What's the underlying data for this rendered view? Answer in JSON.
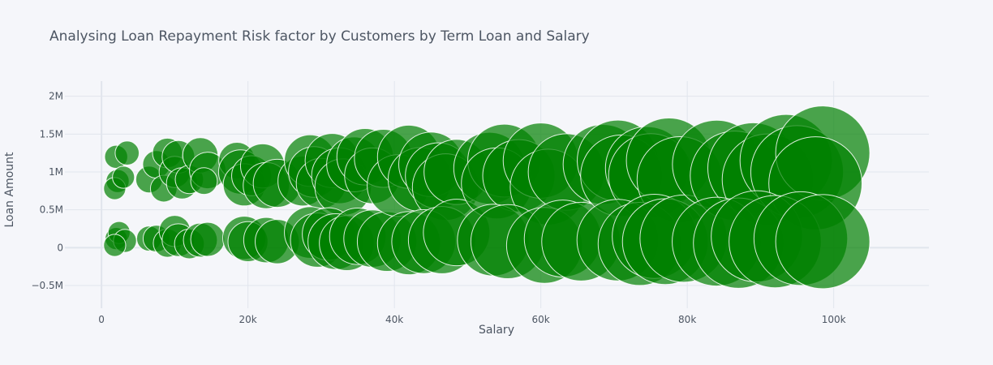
{
  "chart_data": {
    "type": "scatter",
    "title": "Analysing Loan Repayment Risk factor by Customers by Term Loan and Salary",
    "xlabel": "Salary",
    "ylabel": "Loan Amount",
    "xlim": [
      -5000,
      113000
    ],
    "ylim": [
      -800000,
      2200000
    ],
    "x_ticks": [
      0,
      20000,
      40000,
      60000,
      80000,
      100000
    ],
    "x_tick_labels": [
      "0",
      "20k",
      "40k",
      "60k",
      "80k",
      "100k"
    ],
    "y_ticks": [
      -500000,
      0,
      500000,
      1000000,
      1500000,
      2000000
    ],
    "y_tick_labels": [
      "−0.5M",
      "0",
      "0.5M",
      "1M",
      "1.5M",
      "2M"
    ],
    "marker_color": "#008000",
    "marker_opacity": 0.7,
    "grid": true,
    "legend": "none",
    "series": [
      {
        "points": [
          {
            "x": 2000,
            "y": 1200000,
            "s": 600
          },
          {
            "x": 3500,
            "y": 1250000,
            "s": 650
          },
          {
            "x": 2200,
            "y": 880000,
            "s": 600
          },
          {
            "x": 1800,
            "y": 780000,
            "s": 550
          },
          {
            "x": 3000,
            "y": 930000,
            "s": 550
          },
          {
            "x": 2000,
            "y": 120000,
            "s": 550
          },
          {
            "x": 2400,
            "y": 200000,
            "s": 550
          },
          {
            "x": 3200,
            "y": 90000,
            "s": 600
          },
          {
            "x": 1800,
            "y": 30000,
            "s": 550
          },
          {
            "x": 6500,
            "y": 900000,
            "s": 800
          },
          {
            "x": 7500,
            "y": 1100000,
            "s": 850
          },
          {
            "x": 8500,
            "y": 780000,
            "s": 800
          },
          {
            "x": 9000,
            "y": 1250000,
            "s": 1000
          },
          {
            "x": 10000,
            "y": 1000000,
            "s": 1100
          },
          {
            "x": 10500,
            "y": 1200000,
            "s": 1200
          },
          {
            "x": 11000,
            "y": 850000,
            "s": 1100
          },
          {
            "x": 12000,
            "y": 900000,
            "s": 900
          },
          {
            "x": 13500,
            "y": 1220000,
            "s": 1400
          },
          {
            "x": 14500,
            "y": 1020000,
            "s": 1500
          },
          {
            "x": 14000,
            "y": 880000,
            "s": 800
          },
          {
            "x": 6500,
            "y": 120000,
            "s": 700
          },
          {
            "x": 7500,
            "y": 120000,
            "s": 800
          },
          {
            "x": 9000,
            "y": 60000,
            "s": 900
          },
          {
            "x": 10000,
            "y": 220000,
            "s": 1100
          },
          {
            "x": 10500,
            "y": 100000,
            "s": 1200
          },
          {
            "x": 12000,
            "y": 50000,
            "s": 1000
          },
          {
            "x": 13500,
            "y": 100000,
            "s": 1300
          },
          {
            "x": 14500,
            "y": 110000,
            "s": 1300
          },
          {
            "x": 18500,
            "y": 1150000,
            "s": 1500
          },
          {
            "x": 19000,
            "y": 1000000,
            "s": 2200
          },
          {
            "x": 19500,
            "y": 830000,
            "s": 2000
          },
          {
            "x": 20500,
            "y": 950000,
            "s": 1800
          },
          {
            "x": 22000,
            "y": 1080000,
            "s": 2200
          },
          {
            "x": 22500,
            "y": 820000,
            "s": 2400
          },
          {
            "x": 24000,
            "y": 850000,
            "s": 2600
          },
          {
            "x": 19500,
            "y": 130000,
            "s": 2100
          },
          {
            "x": 20000,
            "y": 80000,
            "s": 1800
          },
          {
            "x": 22500,
            "y": 100000,
            "s": 2300
          },
          {
            "x": 24000,
            "y": 80000,
            "s": 2200
          },
          {
            "x": 27500,
            "y": 880000,
            "s": 2800
          },
          {
            "x": 28500,
            "y": 1150000,
            "s": 3000
          },
          {
            "x": 29000,
            "y": 1000000,
            "s": 2900
          },
          {
            "x": 30000,
            "y": 850000,
            "s": 2800
          },
          {
            "x": 31500,
            "y": 1150000,
            "s": 3300
          },
          {
            "x": 32500,
            "y": 950000,
            "s": 3500
          },
          {
            "x": 33000,
            "y": 800000,
            "s": 3600
          },
          {
            "x": 34500,
            "y": 1100000,
            "s": 3400
          },
          {
            "x": 36000,
            "y": 1200000,
            "s": 3600
          },
          {
            "x": 37000,
            "y": 950000,
            "s": 3500
          },
          {
            "x": 38500,
            "y": 1180000,
            "s": 3800
          },
          {
            "x": 28500,
            "y": 200000,
            "s": 3000
          },
          {
            "x": 29500,
            "y": 100000,
            "s": 3300
          },
          {
            "x": 31000,
            "y": 180000,
            "s": 3100
          },
          {
            "x": 32000,
            "y": 80000,
            "s": 3500
          },
          {
            "x": 33500,
            "y": 60000,
            "s": 3400
          },
          {
            "x": 35000,
            "y": 150000,
            "s": 3600
          },
          {
            "x": 37000,
            "y": 120000,
            "s": 3700
          },
          {
            "x": 39000,
            "y": 80000,
            "s": 4000
          },
          {
            "x": 40500,
            "y": 820000,
            "s": 4300
          },
          {
            "x": 42000,
            "y": 1200000,
            "s": 4500
          },
          {
            "x": 43500,
            "y": 900000,
            "s": 4600
          },
          {
            "x": 45000,
            "y": 1100000,
            "s": 4700
          },
          {
            "x": 46000,
            "y": 950000,
            "s": 4900
          },
          {
            "x": 47000,
            "y": 800000,
            "s": 5000
          },
          {
            "x": 48500,
            "y": 1000000,
            "s": 4800
          },
          {
            "x": 42000,
            "y": 60000,
            "s": 4500
          },
          {
            "x": 44000,
            "y": 80000,
            "s": 4600
          },
          {
            "x": 46500,
            "y": 100000,
            "s": 5100
          },
          {
            "x": 48500,
            "y": 200000,
            "s": 5000
          },
          {
            "x": 53000,
            "y": 1050000,
            "s": 5800
          },
          {
            "x": 55000,
            "y": 1150000,
            "s": 6000
          },
          {
            "x": 54000,
            "y": 850000,
            "s": 5700
          },
          {
            "x": 57000,
            "y": 950000,
            "s": 5900
          },
          {
            "x": 60000,
            "y": 1150000,
            "s": 6400
          },
          {
            "x": 61000,
            "y": 800000,
            "s": 6500
          },
          {
            "x": 63500,
            "y": 1000000,
            "s": 6600
          },
          {
            "x": 53500,
            "y": 100000,
            "s": 5800
          },
          {
            "x": 55500,
            "y": 80000,
            "s": 6200
          },
          {
            "x": 60500,
            "y": 30000,
            "s": 6500
          },
          {
            "x": 63000,
            "y": 120000,
            "s": 6700
          },
          {
            "x": 65500,
            "y": 80000,
            "s": 7000
          },
          {
            "x": 68500,
            "y": 1100000,
            "s": 7200
          },
          {
            "x": 70500,
            "y": 1150000,
            "s": 7400
          },
          {
            "x": 71000,
            "y": 950000,
            "s": 7500
          },
          {
            "x": 74500,
            "y": 1050000,
            "s": 7800
          },
          {
            "x": 75000,
            "y": 950000,
            "s": 8000
          },
          {
            "x": 77500,
            "y": 1150000,
            "s": 8200
          },
          {
            "x": 79000,
            "y": 900000,
            "s": 8300
          },
          {
            "x": 70500,
            "y": 100000,
            "s": 7500
          },
          {
            "x": 73500,
            "y": 50000,
            "s": 7800
          },
          {
            "x": 75500,
            "y": 150000,
            "s": 8000
          },
          {
            "x": 77000,
            "y": 80000,
            "s": 8300
          },
          {
            "x": 79500,
            "y": 120000,
            "s": 8600
          },
          {
            "x": 84000,
            "y": 1100000,
            "s": 8800
          },
          {
            "x": 86500,
            "y": 950000,
            "s": 9000
          },
          {
            "x": 89000,
            "y": 1050000,
            "s": 9300
          },
          {
            "x": 91000,
            "y": 900000,
            "s": 9400
          },
          {
            "x": 93500,
            "y": 1150000,
            "s": 9600
          },
          {
            "x": 95000,
            "y": 1000000,
            "s": 9700
          },
          {
            "x": 98500,
            "y": 1250000,
            "s": 10000
          },
          {
            "x": 97500,
            "y": 850000,
            "s": 9800
          },
          {
            "x": 84000,
            "y": 80000,
            "s": 8900
          },
          {
            "x": 87000,
            "y": 60000,
            "s": 9200
          },
          {
            "x": 89500,
            "y": 150000,
            "s": 9400
          },
          {
            "x": 92000,
            "y": 80000,
            "s": 9600
          },
          {
            "x": 95500,
            "y": 120000,
            "s": 9900
          },
          {
            "x": 98500,
            "y": 80000,
            "s": 10000
          }
        ]
      }
    ]
  }
}
